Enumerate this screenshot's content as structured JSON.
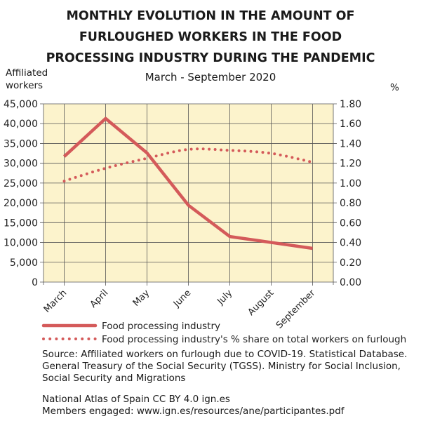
{
  "chart_data": {
    "type": "line",
    "title": "MONTHLY EVOLUTION IN THE AMOUNT OF FURLOUGHED WORKERS IN THE FOOD PROCESSING INDUSTRY DURING THE PANDEMIC",
    "title_lines": [
      "MONTHLY EVOLUTION IN THE AMOUNT OF",
      "FURLOUGHED WORKERS IN THE FOOD",
      "PROCESSING INDUSTRY DURING THE PANDEMIC"
    ],
    "subtitle": "March - September 2020",
    "ylabel": "Affiliated workers",
    "y2label": "%",
    "categories": [
      "March",
      "April",
      "May",
      "June",
      "July",
      "August",
      "September"
    ],
    "ylim": [
      0,
      45000
    ],
    "y2lim": [
      0,
      1.8
    ],
    "yticks": [
      "0",
      "5,000",
      "10,000",
      "15,000",
      "20,000",
      "25,000",
      "30,000",
      "35,000",
      "40,000",
      "45,000"
    ],
    "y2ticks": [
      "0.00",
      "0.20",
      "0.40",
      "0.60",
      "0.80",
      "1.00",
      "1.20",
      "1.40",
      "1.60",
      "1.80"
    ],
    "grid": true,
    "legend_placement": "bottom",
    "plot_background": "#fcf3cc",
    "series": [
      {
        "name": "Food processing industry",
        "axis": "left",
        "style": "solid",
        "color": "#d45a5a",
        "values": [
          31700,
          41300,
          32600,
          19400,
          11500,
          10000,
          8500
        ]
      },
      {
        "name": "Food processing industry's % share on total workers on furlough",
        "axis": "right",
        "style": "dotted",
        "color": "#d45a5a",
        "values": [
          1.02,
          1.15,
          1.25,
          1.34,
          1.33,
          1.3,
          1.21
        ]
      }
    ]
  },
  "source": [
    "Source: Affiliated workers on furlough due to COVID-19. Statistical Database.",
    "General Treasury of the Social Security (TGSS). Ministry for Social Inclusion,",
    "Social Security and Migrations"
  ],
  "footer": [
    "National Atlas of Spain CC BY 4.0 ign.es",
    "Members engaged: www.ign.es/resources/ane/participantes.pdf"
  ]
}
